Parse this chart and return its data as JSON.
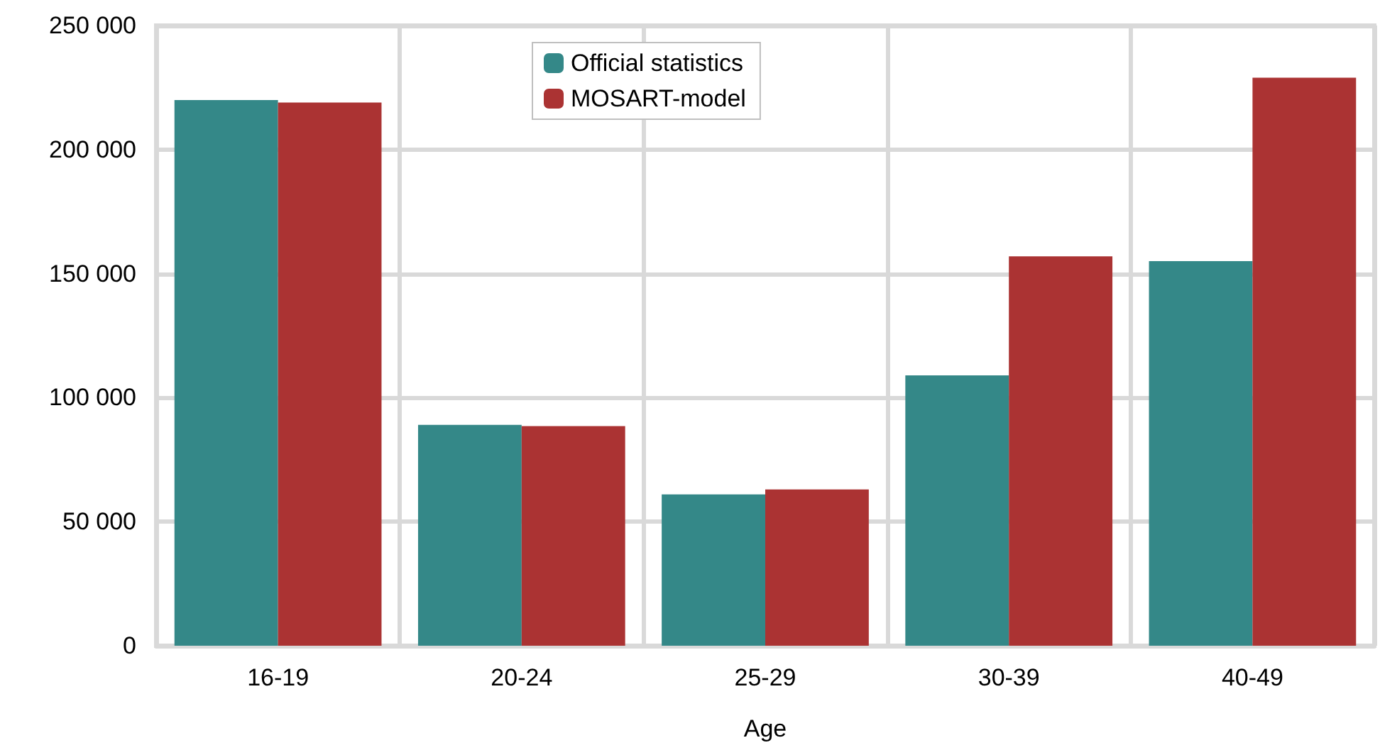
{
  "chart_data": {
    "type": "bar",
    "xlabel": "Age",
    "categories": [
      "16-19",
      "20-24",
      "25-29",
      "30-39",
      "40-49"
    ],
    "series": [
      {
        "name": "Official statistics",
        "color": "#348888",
        "values": [
          220000,
          89000,
          61000,
          109000,
          155000
        ]
      },
      {
        "name": "MOSART-model",
        "color": "#ab3333",
        "values": [
          219000,
          88500,
          63000,
          157000,
          229000
        ]
      }
    ],
    "ylim": [
      0,
      250000
    ],
    "yticks": [
      {
        "value": 0,
        "label": "0"
      },
      {
        "value": 50000,
        "label": "50 000"
      },
      {
        "value": 100000,
        "label": "100 000"
      },
      {
        "value": 150000,
        "label": "150 000"
      },
      {
        "value": 200000,
        "label": "200 000"
      },
      {
        "value": 250000,
        "label": "250 000"
      }
    ],
    "grid": true,
    "legend": "top"
  }
}
